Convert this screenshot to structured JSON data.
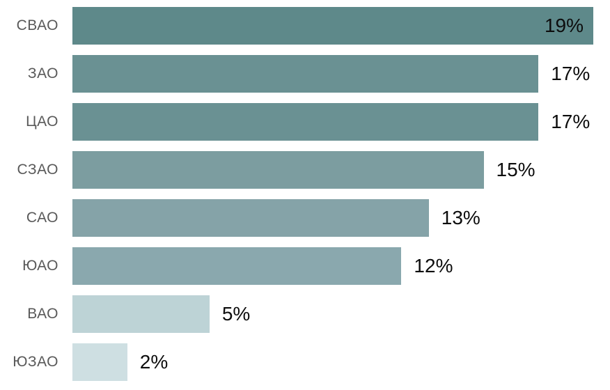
{
  "chart_data": {
    "type": "bar",
    "orientation": "horizontal",
    "title": "",
    "xlabel": "",
    "ylabel": "",
    "categories": [
      "СВАО",
      "ЗАО",
      "ЦАО",
      "СЗАО",
      "САО",
      "ЮАО",
      "ВАО",
      "ЮЗАО"
    ],
    "values": [
      19,
      17,
      17,
      15,
      13,
      12,
      5,
      2
    ],
    "value_labels": [
      "19%",
      "17%",
      "17%",
      "15%",
      "13%",
      "12%",
      "5%",
      "2%"
    ],
    "bar_colors": [
      "#5E898A",
      "#6A9193",
      "#6A9193",
      "#7C9DA0",
      "#85A3A8",
      "#8AA8AE",
      "#BDD3D6",
      "#CEDFE2"
    ],
    "value_label_inside": [
      true,
      false,
      false,
      false,
      false,
      false,
      false,
      false
    ],
    "xlim": [
      0,
      19
    ],
    "grid": "off",
    "axes_visible": false,
    "legend": "none",
    "background_color": "#FFFFFF"
  },
  "styles": {
    "category_label_color": "#595959",
    "value_label_color": "#0D0D0D"
  }
}
